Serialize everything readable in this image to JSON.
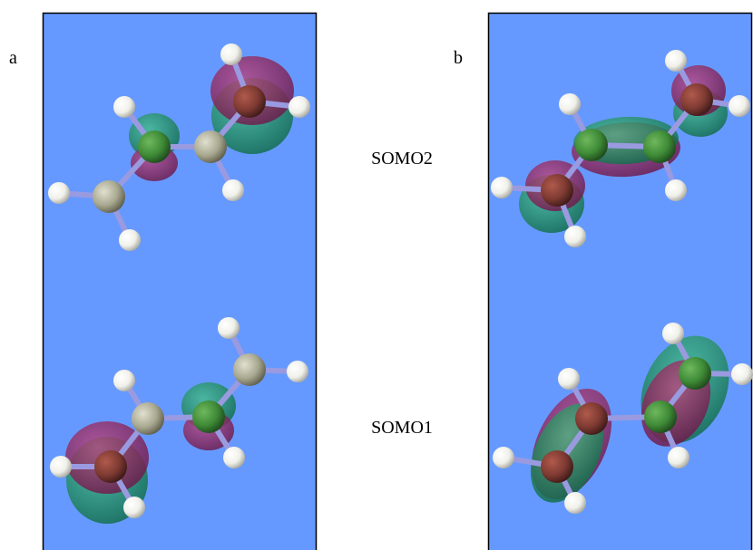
{
  "panels": [
    {
      "label": "a"
    },
    {
      "label": "b"
    }
  ],
  "orbitals": [
    {
      "label": "SOMO2"
    },
    {
      "label": "SOMO1"
    }
  ]
}
